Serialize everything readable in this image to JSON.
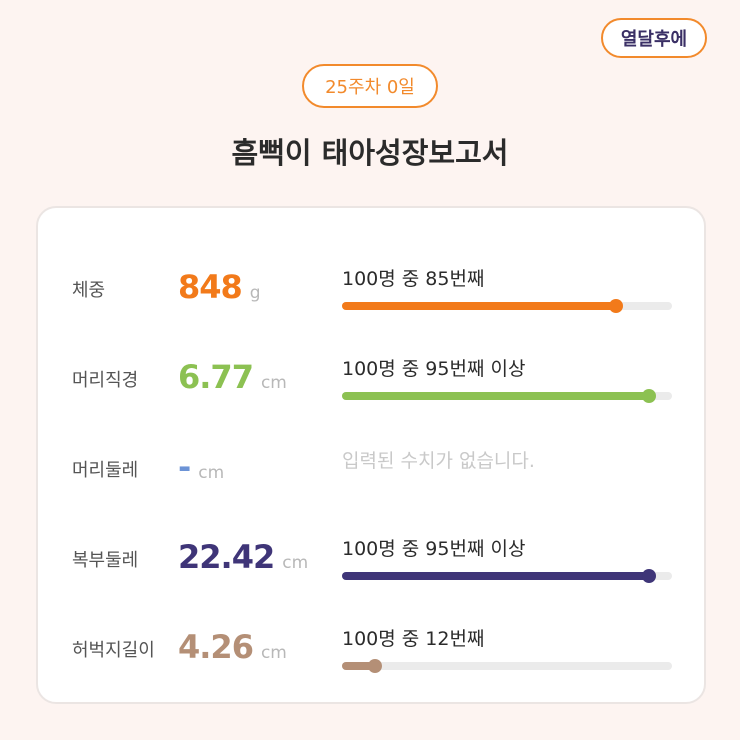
{
  "header": {
    "corner_badge": "열달후에",
    "week_badge": "25주차 0일",
    "title": "흠뻑이 태아성장보고서"
  },
  "metrics": [
    {
      "label": "체중",
      "value": "848",
      "unit": "g",
      "color": "#f27a1a",
      "rank_text": "100명 중 85번째",
      "percentile": 0.83
    },
    {
      "label": "머리직경",
      "value": "6.77",
      "unit": "cm",
      "color": "#8cc152",
      "rank_text": "100명 중 95번째 이상",
      "percentile": 0.93
    },
    {
      "label": "머리둘레",
      "value": "-",
      "unit": "cm",
      "color": "#6c93d6",
      "rank_text": "입력된 수치가 없습니다.",
      "percentile": null
    },
    {
      "label": "복부둘레",
      "value": "22.42",
      "unit": "cm",
      "color": "#3f3578",
      "rank_text": "100명 중 95번째 이상",
      "percentile": 0.93
    },
    {
      "label": "허벅지길이",
      "value": "4.26",
      "unit": "cm",
      "color": "#b48f76",
      "rank_text": "100명 중 12번째",
      "percentile": 0.1
    }
  ]
}
